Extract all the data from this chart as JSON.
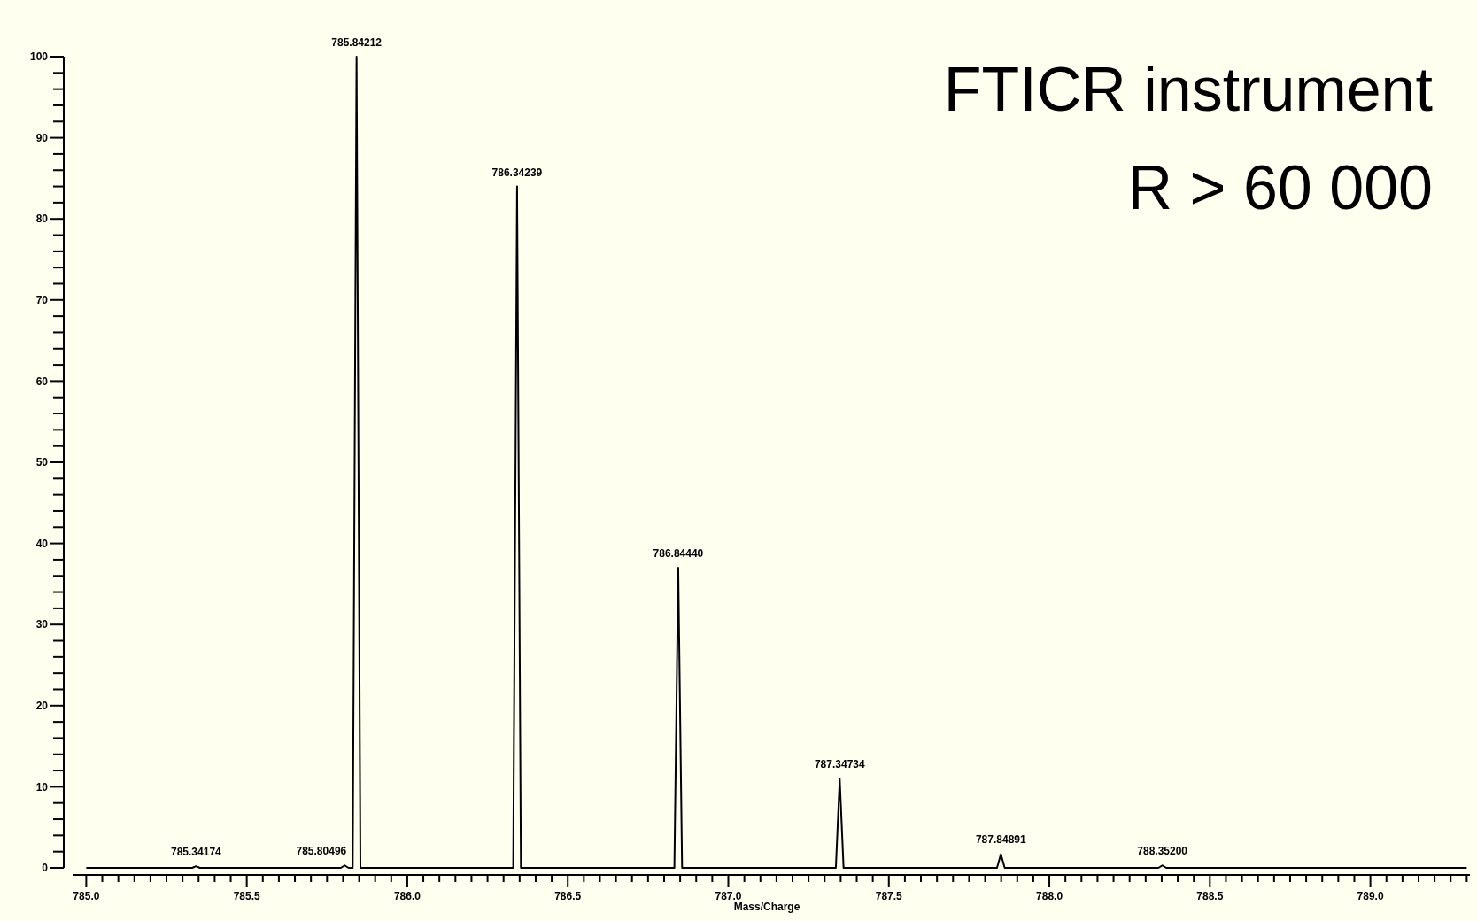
{
  "chart_data": {
    "type": "line",
    "title": "FTICR instrument",
    "subtitle": "R > 60 000",
    "xlabel": "Mass/Charge",
    "series": [
      {
        "color": "#000000",
        "x": [
          785.0,
          785.33,
          785.342,
          785.354,
          785.793,
          785.805,
          785.817,
          785.83,
          785.842,
          785.854,
          786.33,
          786.342,
          786.354,
          786.832,
          786.844,
          786.856,
          787.335,
          787.347,
          787.359,
          787.837,
          787.849,
          787.861,
          788.34,
          788.352,
          788.364,
          789.3
        ],
        "values": [
          0,
          0,
          0.2,
          0,
          0,
          0.3,
          0,
          0,
          100,
          0,
          0,
          84,
          0,
          0,
          37,
          0,
          0,
          11,
          0,
          0,
          1.7,
          0,
          0,
          0.3,
          0,
          0
        ]
      }
    ],
    "annotations": [
      {
        "text": "785.34174",
        "x": 785.342,
        "y": 0.2
      },
      {
        "text": "785.80496",
        "x": 785.805,
        "y": 0.3
      },
      {
        "text": "785.84212",
        "x": 785.842,
        "y": 100
      },
      {
        "text": "786.34239",
        "x": 786.342,
        "y": 84
      },
      {
        "text": "786.84440",
        "x": 786.844,
        "y": 37
      },
      {
        "text": "787.34734",
        "x": 787.347,
        "y": 11
      },
      {
        "text": "787.84891",
        "x": 787.849,
        "y": 1.7
      },
      {
        "text": "788.35200",
        "x": 788.352,
        "y": 0.3
      }
    ],
    "xlim": [
      784.93,
      789.31
    ],
    "ylim": [
      0,
      100
    ],
    "xticks": [
      {
        "value": 785.0,
        "label": "785.0"
      },
      {
        "value": 785.05,
        "label": null
      },
      {
        "value": 785.1,
        "label": null
      },
      {
        "value": 785.15,
        "label": null
      },
      {
        "value": 785.2,
        "label": null
      },
      {
        "value": 785.25,
        "label": null
      },
      {
        "value": 785.3,
        "label": null
      },
      {
        "value": 785.35,
        "label": null
      },
      {
        "value": 785.4,
        "label": null
      },
      {
        "value": 785.45,
        "label": null
      },
      {
        "value": 785.5,
        "label": "785.5"
      },
      {
        "value": 785.55,
        "label": null
      },
      {
        "value": 785.6,
        "label": null
      },
      {
        "value": 785.65,
        "label": null
      },
      {
        "value": 785.7,
        "label": null
      },
      {
        "value": 785.75,
        "label": null
      },
      {
        "value": 785.8,
        "label": null
      },
      {
        "value": 785.85,
        "label": null
      },
      {
        "value": 785.9,
        "label": null
      },
      {
        "value": 785.95,
        "label": null
      },
      {
        "value": 786.0,
        "label": "786.0"
      },
      {
        "value": 786.05,
        "label": null
      },
      {
        "value": 786.1,
        "label": null
      },
      {
        "value": 786.15,
        "label": null
      },
      {
        "value": 786.2,
        "label": null
      },
      {
        "value": 786.25,
        "label": null
      },
      {
        "value": 786.3,
        "label": null
      },
      {
        "value": 786.35,
        "label": null
      },
      {
        "value": 786.4,
        "label": null
      },
      {
        "value": 786.45,
        "label": null
      },
      {
        "value": 786.5,
        "label": "786.5"
      },
      {
        "value": 786.55,
        "label": null
      },
      {
        "value": 786.6,
        "label": null
      },
      {
        "value": 786.65,
        "label": null
      },
      {
        "value": 786.7,
        "label": null
      },
      {
        "value": 786.75,
        "label": null
      },
      {
        "value": 786.8,
        "label": null
      },
      {
        "value": 786.85,
        "label": null
      },
      {
        "value": 786.9,
        "label": null
      },
      {
        "value": 786.95,
        "label": null
      },
      {
        "value": 787.0,
        "label": "787.0"
      },
      {
        "value": 787.05,
        "label": null
      },
      {
        "value": 787.1,
        "label": null
      },
      {
        "value": 787.15,
        "label": null
      },
      {
        "value": 787.2,
        "label": null
      },
      {
        "value": 787.25,
        "label": null
      },
      {
        "value": 787.3,
        "label": null
      },
      {
        "value": 787.35,
        "label": null
      },
      {
        "value": 787.4,
        "label": null
      },
      {
        "value": 787.45,
        "label": null
      },
      {
        "value": 787.5,
        "label": "787.5"
      },
      {
        "value": 787.55,
        "label": null
      },
      {
        "value": 787.6,
        "label": null
      },
      {
        "value": 787.65,
        "label": null
      },
      {
        "value": 787.7,
        "label": null
      },
      {
        "value": 787.75,
        "label": null
      },
      {
        "value": 787.8,
        "label": null
      },
      {
        "value": 787.85,
        "label": null
      },
      {
        "value": 787.9,
        "label": null
      },
      {
        "value": 787.95,
        "label": null
      },
      {
        "value": 788.0,
        "label": "788.0"
      },
      {
        "value": 788.05,
        "label": null
      },
      {
        "value": 788.1,
        "label": null
      },
      {
        "value": 788.15,
        "label": null
      },
      {
        "value": 788.2,
        "label": null
      },
      {
        "value": 788.25,
        "label": null
      },
      {
        "value": 788.3,
        "label": null
      },
      {
        "value": 788.35,
        "label": null
      },
      {
        "value": 788.4,
        "label": null
      },
      {
        "value": 788.45,
        "label": null
      },
      {
        "value": 788.5,
        "label": "788.5"
      },
      {
        "value": 788.55,
        "label": null
      },
      {
        "value": 788.6,
        "label": null
      },
      {
        "value": 788.65,
        "label": null
      },
      {
        "value": 788.7,
        "label": null
      },
      {
        "value": 788.75,
        "label": null
      },
      {
        "value": 788.8,
        "label": null
      },
      {
        "value": 788.85,
        "label": null
      },
      {
        "value": 788.9,
        "label": null
      },
      {
        "value": 788.95,
        "label": null
      },
      {
        "value": 789.0,
        "label": "789.0"
      },
      {
        "value": 789.05,
        "label": null
      },
      {
        "value": 789.1,
        "label": null
      },
      {
        "value": 789.15,
        "label": null
      },
      {
        "value": 789.2,
        "label": null
      },
      {
        "value": 789.25,
        "label": null
      },
      {
        "value": 789.3,
        "label": null
      }
    ],
    "yticks": [
      0,
      {
        "value": 2,
        "label": null
      },
      {
        "value": 4,
        "label": null
      },
      {
        "value": 6,
        "label": null
      },
      {
        "value": 8,
        "label": null
      },
      10,
      {
        "value": 12,
        "label": null
      },
      {
        "value": 14,
        "label": null
      },
      {
        "value": 16,
        "label": null
      },
      {
        "value": 18,
        "label": null
      },
      20,
      {
        "value": 22,
        "label": null
      },
      {
        "value": 24,
        "label": null
      },
      {
        "value": 26,
        "label": null
      },
      {
        "value": 28,
        "label": null
      },
      30,
      {
        "value": 32,
        "label": null
      },
      {
        "value": 34,
        "label": null
      },
      {
        "value": 36,
        "label": null
      },
      {
        "value": 38,
        "label": null
      },
      40,
      {
        "value": 42,
        "label": null
      },
      {
        "value": 44,
        "label": null
      },
      {
        "value": 46,
        "label": null
      },
      {
        "value": 48,
        "label": null
      },
      50,
      {
        "value": 52,
        "label": null
      },
      {
        "value": 54,
        "label": null
      },
      {
        "value": 56,
        "label": null
      },
      {
        "value": 58,
        "label": null
      },
      60,
      {
        "value": 62,
        "label": null
      },
      {
        "value": 64,
        "label": null
      },
      {
        "value": 66,
        "label": null
      },
      {
        "value": 68,
        "label": null
      },
      70,
      {
        "value": 72,
        "label": null
      },
      {
        "value": 74,
        "label": null
      },
      {
        "value": 76,
        "label": null
      },
      {
        "value": 78,
        "label": null
      },
      80,
      {
        "value": 82,
        "label": null
      },
      {
        "value": 84,
        "label": null
      },
      {
        "value": 86,
        "label": null
      },
      {
        "value": 88,
        "label": null
      },
      90,
      {
        "value": 92,
        "label": null
      },
      {
        "value": 94,
        "label": null
      },
      {
        "value": 96,
        "label": null
      },
      {
        "value": 98,
        "label": null
      },
      100
    ],
    "grid": false,
    "marker": "none",
    "line_style": "solid"
  }
}
